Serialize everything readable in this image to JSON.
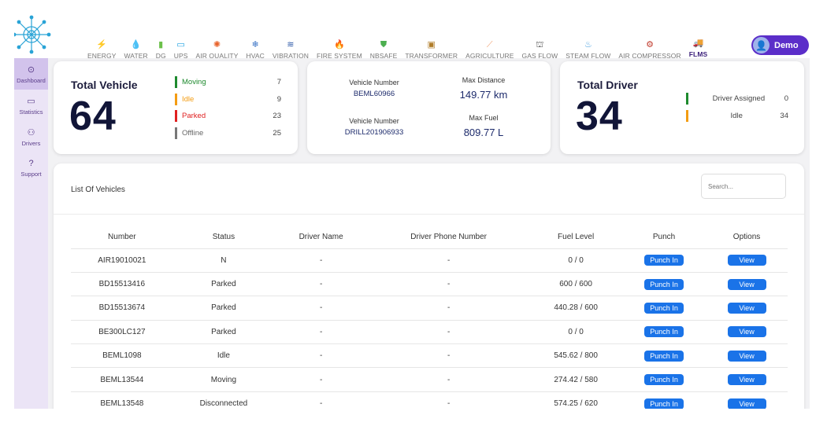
{
  "nav": {
    "items": [
      {
        "label": "ENERGY",
        "icon": "⚡",
        "icon_name": "energy-icon",
        "color": "#f3b21b"
      },
      {
        "label": "WATER",
        "icon": "💧",
        "icon_name": "water-icon",
        "color": "#8a5ad6"
      },
      {
        "label": "DG",
        "icon": "▮",
        "icon_name": "dg-icon",
        "color": "#6cc04a"
      },
      {
        "label": "UPS",
        "icon": "▭",
        "icon_name": "ups-icon",
        "color": "#1da1e2"
      },
      {
        "label": "AIR QUALITY",
        "icon": "✺",
        "icon_name": "air-quality-icon",
        "color": "#e8632b"
      },
      {
        "label": "HVAC",
        "icon": "❄",
        "icon_name": "hvac-icon",
        "color": "#3570c4"
      },
      {
        "label": "VIBRATION",
        "icon": "≋",
        "icon_name": "vibration-icon",
        "color": "#2e5aa8"
      },
      {
        "label": "FIRE SYSTEM",
        "icon": "🔥",
        "icon_name": "fire-system-icon",
        "color": "#e24a2e"
      },
      {
        "label": "NBSAFE",
        "icon": "⛊",
        "icon_name": "nbsafe-icon",
        "color": "#4caf50"
      },
      {
        "label": "TRANSFORMER",
        "icon": "▣",
        "icon_name": "transformer-icon",
        "color": "#b07d2a"
      },
      {
        "label": "AGRICULTURE",
        "icon": "⟋",
        "icon_name": "agriculture-icon",
        "color": "#f0a070"
      },
      {
        "label": "GAS FLOW",
        "icon": "⛫",
        "icon_name": "gas-flow-icon",
        "color": "#555555"
      },
      {
        "label": "STEAM FLOW",
        "icon": "♨",
        "icon_name": "steam-flow-icon",
        "color": "#4ea3e0"
      },
      {
        "label": "AIR COMPRESSOR",
        "icon": "⚙",
        "icon_name": "air-compressor-icon",
        "color": "#c0392b"
      },
      {
        "label": "FLMS",
        "icon": "🚚",
        "icon_name": "flms-icon",
        "color": "#2c6fb5",
        "active": true
      }
    ]
  },
  "user": {
    "label": "Demo",
    "avatar_icon": "👤"
  },
  "sidebar": {
    "items": [
      {
        "label": "Dashboard",
        "icon": "⊙",
        "icon_name": "dashboard-icon",
        "active": true
      },
      {
        "label": "Statistics",
        "icon": "▭",
        "icon_name": "statistics-icon"
      },
      {
        "label": "Drivers",
        "icon": "⚇",
        "icon_name": "drivers-icon"
      },
      {
        "label": "Support",
        "icon": "?",
        "icon_name": "support-icon"
      }
    ]
  },
  "vehicle_card": {
    "title": "Total Vehicle",
    "total": "64",
    "statuses": [
      {
        "label": "Moving",
        "value": "7",
        "color": "#1e8a2e"
      },
      {
        "label": "Idle",
        "value": "9",
        "color": "#f39c12"
      },
      {
        "label": "Parked",
        "value": "23",
        "color": "#e02020"
      },
      {
        "label": "Offline",
        "value": "25",
        "color": "#777777"
      }
    ]
  },
  "max_card": {
    "distance_vehicle_label": "Vehicle Number",
    "distance_vehicle": "BEML60966",
    "distance_label": "Max Distance",
    "distance_value": "149.77 km",
    "fuel_vehicle_label": "Vehicle Number",
    "fuel_vehicle": "DRILL201906933",
    "fuel_label": "Max Fuel",
    "fuel_value": "809.77 L"
  },
  "driver_card": {
    "title": "Total Driver",
    "total": "34",
    "statuses": [
      {
        "label": "Driver Assigned",
        "value": "0",
        "color": "#1e8a2e"
      },
      {
        "label": "Idle",
        "value": "34",
        "color": "#f39c12"
      }
    ]
  },
  "vehicle_list": {
    "title": "List Of Vehicles",
    "search_placeholder": "Search...",
    "columns": [
      "Number",
      "Status",
      "Driver Name",
      "Driver Phone Number",
      "Fuel Level",
      "Punch",
      "Options"
    ],
    "punch_label": "Punch In",
    "view_label": "View",
    "rows": [
      {
        "number": "AIR19010021",
        "status": "N",
        "driver": "-",
        "phone": "-",
        "fuel": "0 / 0"
      },
      {
        "number": "BD15513416",
        "status": "Parked",
        "driver": "-",
        "phone": "-",
        "fuel": "600 / 600"
      },
      {
        "number": "BD15513674",
        "status": "Parked",
        "driver": "-",
        "phone": "-",
        "fuel": "440.28 / 600"
      },
      {
        "number": "BE300LC127",
        "status": "Parked",
        "driver": "-",
        "phone": "-",
        "fuel": "0 / 0"
      },
      {
        "number": "BEML1098",
        "status": "Idle",
        "driver": "-",
        "phone": "-",
        "fuel": "545.62 / 800"
      },
      {
        "number": "BEML13544",
        "status": "Moving",
        "driver": "-",
        "phone": "-",
        "fuel": "274.42 / 580"
      },
      {
        "number": "BEML13548",
        "status": "Disconnected",
        "driver": "-",
        "phone": "-",
        "fuel": "574.25 / 620"
      }
    ]
  }
}
